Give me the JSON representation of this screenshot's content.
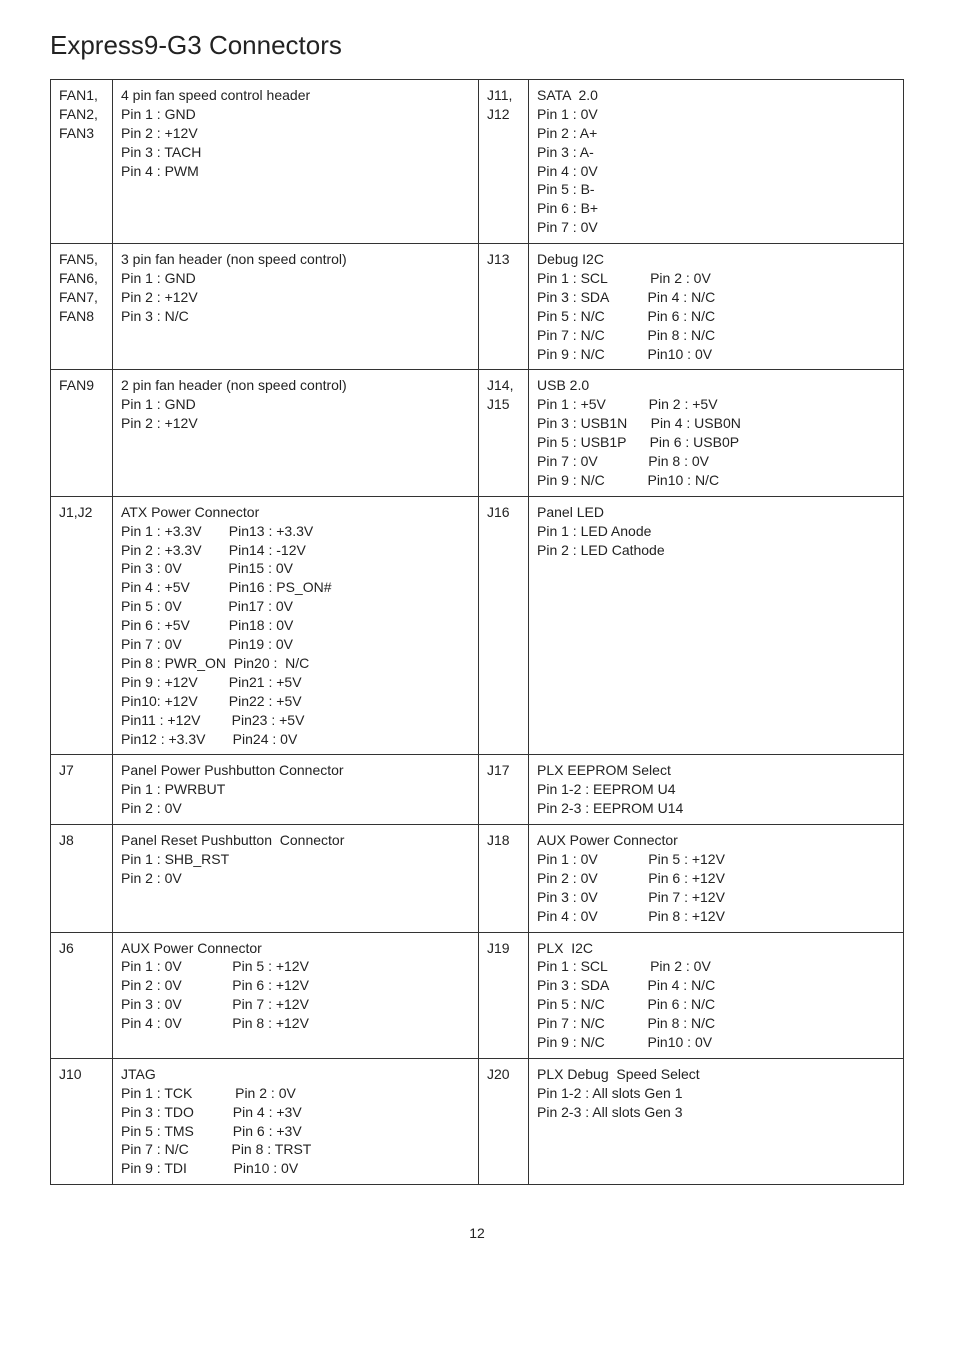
{
  "title": "Express9-G3 Connectors",
  "page_number": "12",
  "rows": [
    {
      "c1": "FAN1, FAN2, FAN3",
      "c2": "4 pin fan speed control header\nPin 1 : GND\nPin 2 : +12V\nPin 3 : TACH\nPin 4 : PWM",
      "c3": "J11, J12",
      "c4": "SATA  2.0\nPin 1 : 0V\nPin 2 : A+\nPin 3 : A-\nPin 4 : 0V\nPin 5 : B-\nPin 6 : B+\nPin 7 : 0V"
    },
    {
      "c1": "FAN5, FAN6, FAN7, FAN8",
      "c2": "3 pin fan header (non speed control)\nPin 1 : GND\nPin 2 : +12V\nPin 3 : N/C",
      "c3": "J13",
      "c4": "Debug I2C\nPin 1 : SCL           Pin 2 : 0V\nPin 3 : SDA          Pin 4 : N/C\nPin 5 : N/C           Pin 6 : N/C\nPin 7 : N/C           Pin 8 : N/C\nPin 9 : N/C           Pin10 : 0V"
    },
    {
      "c1": "FAN9",
      "c2": "2 pin fan header (non speed control)\nPin 1 : GND\nPin 2 : +12V",
      "c3": "J14, J15",
      "c4": "USB 2.0\nPin 1 : +5V           Pin 2 : +5V\nPin 3 : USB1N      Pin 4 : USB0N\nPin 5 : USB1P      Pin 6 : USB0P\nPin 7 : 0V             Pin 8 : 0V\nPin 9 : N/C           Pin10 : N/C"
    },
    {
      "c1": "J1,J2",
      "c2": "ATX Power Connector\nPin 1 : +3.3V       Pin13 : +3.3V\nPin 2 : +3.3V       Pin14 : -12V\nPin 3 : 0V            Pin15 : 0V\nPin 4 : +5V          Pin16 : PS_ON#\nPin 5 : 0V            Pin17 : 0V\nPin 6 : +5V          Pin18 : 0V\nPin 7 : 0V            Pin19 : 0V\nPin 8 : PWR_ON  Pin20 :  N/C\nPin 9 : +12V        Pin21 : +5V\nPin10: +12V        Pin22 : +5V\nPin11 : +12V        Pin23 : +5V\nPin12 : +3.3V       Pin24 : 0V",
      "c3": "J16",
      "c4": "Panel LED\nPin 1 : LED Anode\nPin 2 : LED Cathode"
    },
    {
      "c1": "J7",
      "c2": "Panel Power Pushbutton Connector\nPin 1 : PWRBUT\nPin 2 : 0V",
      "c3": "J17",
      "c4": "PLX EEPROM Select\nPin 1-2 : EEPROM U4\nPin 2-3 : EEPROM U14"
    },
    {
      "c1": "J8",
      "c2": "Panel Reset Pushbutton  Connector\nPin 1 : SHB_RST\nPin 2 : 0V",
      "c3": "J18",
      "c4": "AUX Power Connector\nPin 1 : 0V             Pin 5 : +12V\nPin 2 : 0V             Pin 6 : +12V\nPin 3 : 0V             Pin 7 : +12V\nPin 4 : 0V             Pin 8 : +12V"
    },
    {
      "c1": "J6",
      "c2": "AUX Power Connector\nPin 1 : 0V             Pin 5 : +12V\nPin 2 : 0V             Pin 6 : +12V\nPin 3 : 0V             Pin 7 : +12V\nPin 4 : 0V             Pin 8 : +12V",
      "c3": "J19",
      "c4": "PLX  I2C\nPin 1 : SCL           Pin 2 : 0V\nPin 3 : SDA          Pin 4 : N/C\nPin 5 : N/C           Pin 6 : N/C\nPin 7 : N/C           Pin 8 : N/C\nPin 9 : N/C           Pin10 : 0V"
    },
    {
      "c1": "J10",
      "c2": "JTAG\nPin 1 : TCK           Pin 2 : 0V\nPin 3 : TDO          Pin 4 : +3V\nPin 5 : TMS          Pin 6 : +3V\nPin 7 : N/C           Pin 8 : TRST\nPin 9 : TDI            Pin10 : 0V",
      "c3": "J20",
      "c4": "PLX Debug  Speed Select\nPin 1-2 : All slots Gen 1\nPin 2-3 : All slots Gen 3"
    }
  ]
}
